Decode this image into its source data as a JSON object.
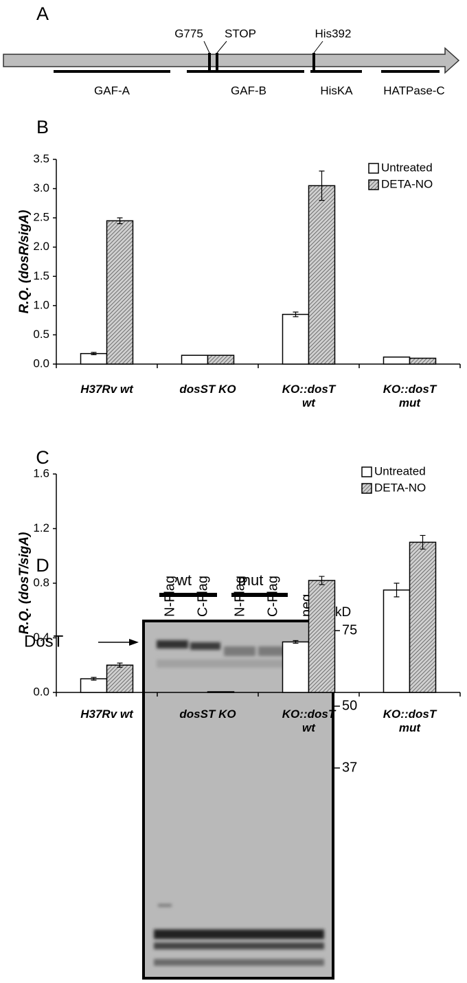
{
  "diagram": {
    "panel_label": "A",
    "sites": [
      {
        "label": "G775"
      },
      {
        "label": "STOP"
      },
      {
        "label": "His392"
      }
    ],
    "domains": [
      {
        "label": "GAF-A"
      },
      {
        "label": "GAF-B"
      },
      {
        "label": "HisKA"
      },
      {
        "label": "HATPase-C"
      }
    ]
  },
  "chart_data": [
    {
      "type": "bar",
      "panel_label": "B",
      "y_label": "R.Q. (dosR/sigA)",
      "categories": [
        "H37Rv wt",
        "dosST KO",
        "KO::dosT\nwt",
        "KO::dosT\nmut"
      ],
      "series": [
        {
          "name": "Untreated",
          "color": "#ffffff",
          "values": [
            0.18,
            0.15,
            0.85,
            0.12
          ],
          "errors": [
            0.02,
            null,
            0.04,
            null
          ]
        },
        {
          "name": "DETA-NO",
          "color": "#a6a6a6",
          "hatch": true,
          "values": [
            2.45,
            0.15,
            3.05,
            0.1
          ],
          "errors": [
            0.05,
            null,
            0.25,
            null
          ]
        }
      ],
      "ylim": [
        0,
        3.5
      ],
      "yticks": [
        {
          "value": 0,
          "label": "0.0"
        },
        0.5,
        {
          "value": 1,
          "label": "1.0"
        },
        1.5,
        {
          "value": 2,
          "label": "2.0"
        },
        2.5,
        {
          "value": 3,
          "label": "3.0"
        },
        3.5
      ],
      "legend": "upper right"
    },
    {
      "type": "bar",
      "panel_label": "C",
      "y_label": "R.Q. (dosT/sigA)",
      "categories": [
        "H37Rv wt",
        "dosST KO",
        "KO::dosT\nwt",
        "KO::dosT\nmut"
      ],
      "series": [
        {
          "name": "Untreated",
          "color": "#ffffff",
          "values": [
            0.1,
            0,
            0.37,
            0.75
          ],
          "errors": [
            0.01,
            null,
            0.01,
            0.05
          ]
        },
        {
          "name": "DETA-NO",
          "color": "#a6a6a6",
          "hatch": true,
          "values": [
            0.2,
            0.005,
            0.82,
            1.1
          ],
          "errors": [
            0.015,
            null,
            0.03,
            0.05
          ]
        }
      ],
      "ylim": [
        0,
        1.6
      ],
      "yticks": [
        {
          "value": 0,
          "label": "0.0"
        },
        0.4,
        0.8,
        1.2,
        1.6
      ],
      "legend": "upper right"
    }
  ],
  "blot": {
    "panel_label": "D",
    "groups": [
      "wt",
      "mut"
    ],
    "lanes": [
      "N-Flag",
      "C-Flag",
      "N-Flag",
      "C-Flag",
      "neg."
    ],
    "unit": "kD",
    "markers": [
      75,
      50,
      37
    ],
    "target": "DosT"
  }
}
